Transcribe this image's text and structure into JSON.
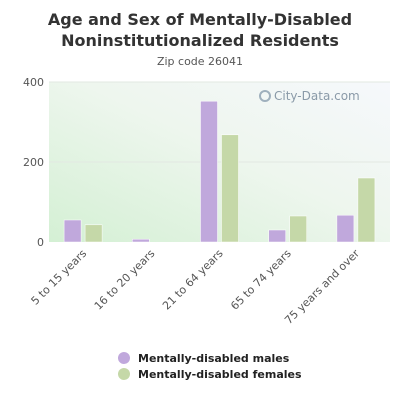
{
  "chart_data": {
    "type": "bar",
    "title": "Age and Sex of Mentally-Disabled Noninstitutionalized Residents",
    "subtitle": "Zip code 26041",
    "categories": [
      "5 to 15 years",
      "16 to 20 years",
      "21 to 64 years",
      "65 to 74 years",
      "75 years and over"
    ],
    "series": [
      {
        "name": "Mentally-disabled males",
        "values": [
          55,
          7,
          352,
          30,
          67
        ],
        "color": "#c0a8dc"
      },
      {
        "name": "Mentally-disabled females",
        "values": [
          43,
          0,
          268,
          65,
          160
        ],
        "color": "#c5d8a8"
      }
    ],
    "ylim": [
      0,
      400
    ],
    "yticks": [
      0,
      200,
      400
    ],
    "grid": true,
    "legend_position": "bottom"
  },
  "watermark": "City-Data.com"
}
